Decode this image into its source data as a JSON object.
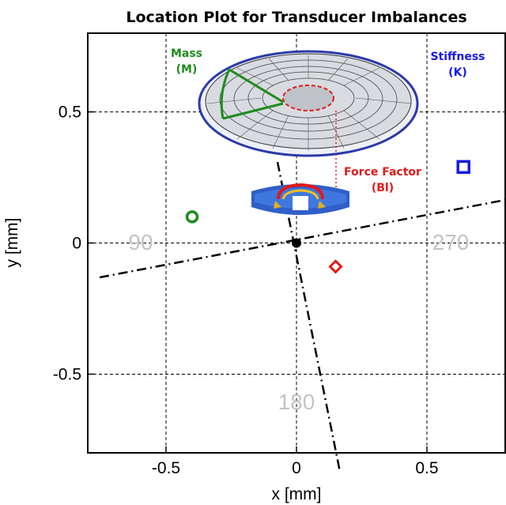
{
  "chart_data": {
    "type": "scatter",
    "title": "Location Plot for Transducer Imbalances",
    "xlabel": "x [mm]",
    "ylabel": "y [mm]",
    "xlim": [
      -0.8,
      0.8
    ],
    "ylim": [
      -0.8,
      0.8
    ],
    "xticks": [
      "-0.5",
      "0",
      "0.5"
    ],
    "yticks": [
      "0.5",
      "0",
      "-0.5"
    ],
    "grid": true,
    "points": [
      {
        "label": "Mass (M)",
        "x": -0.4,
        "y": 0.1,
        "marker": "circle",
        "color": "#1e8c1e"
      },
      {
        "label": "Stiffness (K)",
        "x": 0.64,
        "y": 0.29,
        "marker": "square",
        "color": "#1a1ae6"
      },
      {
        "label": "Force Factor (Bl)",
        "x": 0.15,
        "y": -0.09,
        "marker": "diamond",
        "color": "#e01a1a"
      },
      {
        "label": "origin",
        "x": 0,
        "y": 0,
        "marker": "dot",
        "color": "#000000"
      }
    ],
    "annotations": {
      "mass": [
        "Mass",
        "(M)"
      ],
      "stiffness": [
        "Stiffness",
        "(K)"
      ],
      "force": [
        "Force Factor",
        "(Bl)"
      ]
    },
    "angle_labels": [
      "90",
      "270",
      "180"
    ]
  }
}
